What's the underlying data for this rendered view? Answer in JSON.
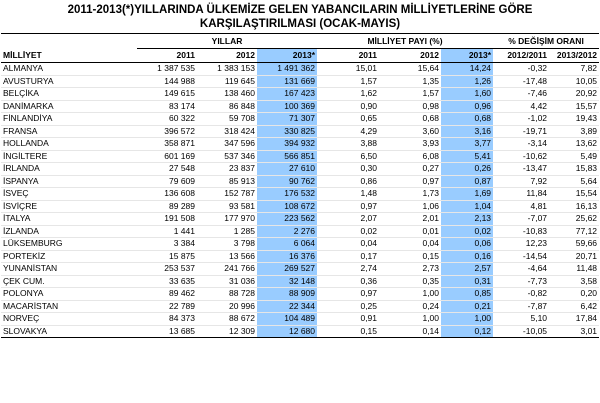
{
  "title_line1": "2011-2013(*)YILLARINDA ÜLKEMİZE GELEN YABANCILARIN MİLLİYETLERİNE GÖRE",
  "title_line2": "KARŞILAŞTIRILMASI (OCAK-MAYIS)",
  "groups": {
    "years": "YILLAR",
    "share": "MİLLİYET PAYI (%)",
    "change": "% DEĞİŞİM ORANI"
  },
  "columns": [
    "MİLLİYET",
    "2011",
    "2012",
    "2013*",
    "2011",
    "2012",
    "2013*",
    "2012/2011",
    "2013/2012"
  ],
  "highlight_color": "#99ccff",
  "rows": [
    [
      "ALMANYA",
      "1 387 535",
      "1 383 153",
      "1 491 362",
      "15,01",
      "15,64",
      "14,24",
      "-0,32",
      "7,82"
    ],
    [
      "AVUSTURYA",
      "144 988",
      "119 645",
      "131 669",
      "1,57",
      "1,35",
      "1,26",
      "-17,48",
      "10,05"
    ],
    [
      "BELÇİKA",
      "149 615",
      "138 460",
      "167 423",
      "1,62",
      "1,57",
      "1,60",
      "-7,46",
      "20,92"
    ],
    [
      "DANİMARKA",
      "83 174",
      "86 848",
      "100 369",
      "0,90",
      "0,98",
      "0,96",
      "4,42",
      "15,57"
    ],
    [
      "FİNLANDİYA",
      "60 322",
      "59 708",
      "71 307",
      "0,65",
      "0,68",
      "0,68",
      "-1,02",
      "19,43"
    ],
    [
      "FRANSA",
      "396 572",
      "318 424",
      "330 825",
      "4,29",
      "3,60",
      "3,16",
      "-19,71",
      "3,89"
    ],
    [
      "HOLLANDA",
      "358 871",
      "347 596",
      "394 932",
      "3,88",
      "3,93",
      "3,77",
      "-3,14",
      "13,62"
    ],
    [
      "İNGİLTERE",
      "601 169",
      "537 346",
      "566 851",
      "6,50",
      "6,08",
      "5,41",
      "-10,62",
      "5,49"
    ],
    [
      "İRLANDA",
      "27 548",
      "23 837",
      "27 610",
      "0,30",
      "0,27",
      "0,26",
      "-13,47",
      "15,83"
    ],
    [
      "İSPANYA",
      "79 609",
      "85 913",
      "90 762",
      "0,86",
      "0,97",
      "0,87",
      "7,92",
      "5,64"
    ],
    [
      "İSVEÇ",
      "136 608",
      "152 787",
      "176 532",
      "1,48",
      "1,73",
      "1,69",
      "11,84",
      "15,54"
    ],
    [
      "İSVİÇRE",
      "89 289",
      "93 581",
      "108 672",
      "0,97",
      "1,06",
      "1,04",
      "4,81",
      "16,13"
    ],
    [
      "İTALYA",
      "191 508",
      "177 970",
      "223 562",
      "2,07",
      "2,01",
      "2,13",
      "-7,07",
      "25,62"
    ],
    [
      "İZLANDA",
      "1 441",
      "1 285",
      "2 276",
      "0,02",
      "0,01",
      "0,02",
      "-10,83",
      "77,12"
    ],
    [
      "LÜKSEMBURG",
      "3 384",
      "3 798",
      "6 064",
      "0,04",
      "0,04",
      "0,06",
      "12,23",
      "59,66"
    ],
    [
      "PORTEKİZ",
      "15 875",
      "13 566",
      "16 376",
      "0,17",
      "0,15",
      "0,16",
      "-14,54",
      "20,71"
    ],
    [
      "YUNANİSTAN",
      "253 537",
      "241 766",
      "269 527",
      "2,74",
      "2,73",
      "2,57",
      "-4,64",
      "11,48"
    ],
    [
      "ÇEK CUM.",
      "33 635",
      "31 036",
      "32 148",
      "0,36",
      "0,35",
      "0,31",
      "-7,73",
      "3,58"
    ],
    [
      "POLONYA",
      "89 462",
      "88 728",
      "88 909",
      "0,97",
      "1,00",
      "0,85",
      "-0,82",
      "0,20"
    ],
    [
      "MACARİSTAN",
      "22 789",
      "20 996",
      "22 344",
      "0,25",
      "0,24",
      "0,21",
      "-7,87",
      "6,42"
    ],
    [
      "NORVEÇ",
      "84 373",
      "88 672",
      "104 489",
      "0,91",
      "1,00",
      "1,00",
      "5,10",
      "17,84"
    ],
    [
      "SLOVAKYA",
      "13 685",
      "12 309",
      "12 680",
      "0,15",
      "0,14",
      "0,12",
      "-10,05",
      "3,01"
    ]
  ]
}
